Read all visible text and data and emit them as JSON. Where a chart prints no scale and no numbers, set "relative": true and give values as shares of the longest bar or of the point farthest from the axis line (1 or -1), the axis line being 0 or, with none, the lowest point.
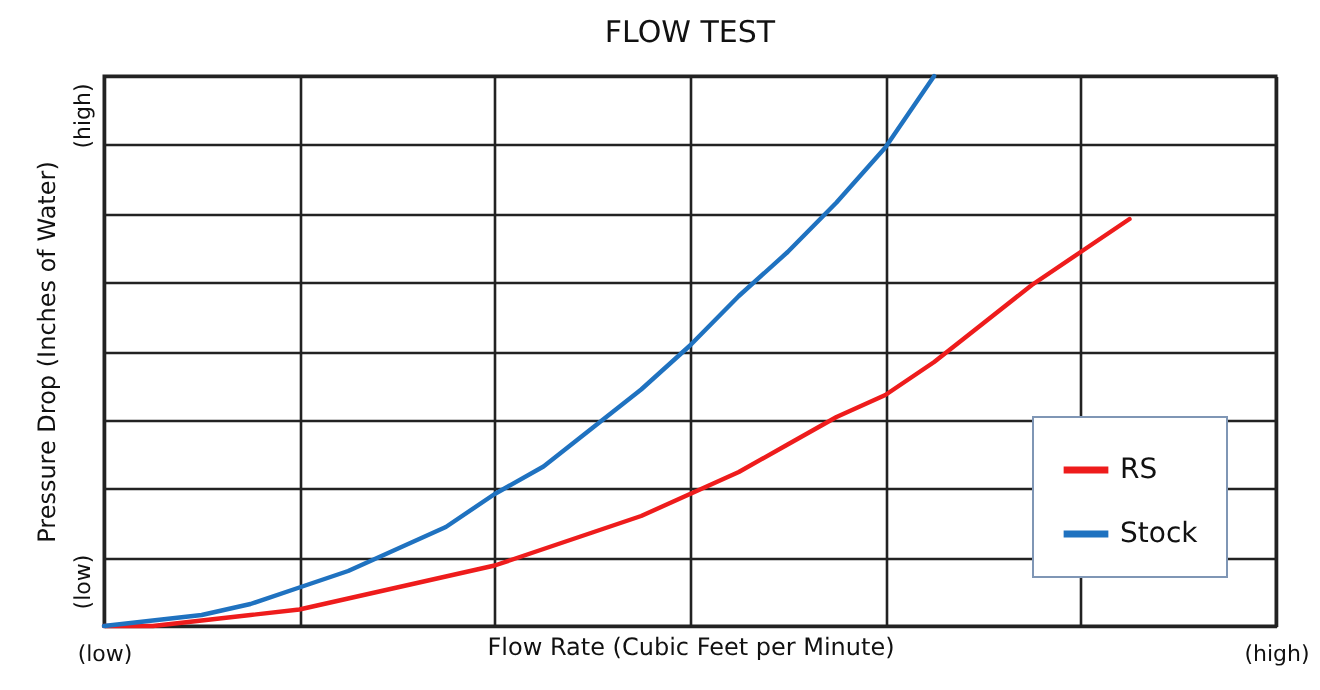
{
  "chart_data": {
    "type": "line",
    "title": "FLOW TEST",
    "xlabel": "Flow Rate (Cubic Feet per Minute)",
    "ylabel": "Pressure Drop (Inches of Water)",
    "relative": true,
    "categories": [
      "(low)",
      null,
      null,
      null,
      null,
      null,
      null,
      null,
      null,
      null,
      null,
      null,
      null,
      null,
      null,
      null,
      null,
      null,
      null,
      null,
      null,
      null,
      null,
      null,
      "(high)"
    ],
    "annotations": [
      "(low)",
      "(high)"
    ],
    "grid": true,
    "legend": "bottom right",
    "marker": "none",
    "line_style": "solid",
    "series": [
      {
        "name": "RS",
        "color": "#ee1c1c",
        "values": [
          0,
          0,
          0.01,
          0.02,
          0.03,
          0.05,
          0.07,
          0.09,
          0.11,
          0.14,
          0.17,
          0.2,
          0.24,
          0.28,
          0.33,
          0.38,
          0.42,
          0.48,
          0.55,
          0.62,
          0.68,
          0.74,
          null,
          null,
          null
        ]
      },
      {
        "name": "Stock",
        "color": "#1f72c0",
        "values": [
          0,
          0.01,
          0.02,
          0.04,
          0.07,
          0.1,
          0.14,
          0.18,
          0.24,
          0.29,
          0.36,
          0.43,
          0.51,
          0.6,
          0.68,
          0.77,
          0.87,
          1,
          null,
          null,
          null,
          null,
          null,
          null,
          null
        ]
      }
    ]
  }
}
